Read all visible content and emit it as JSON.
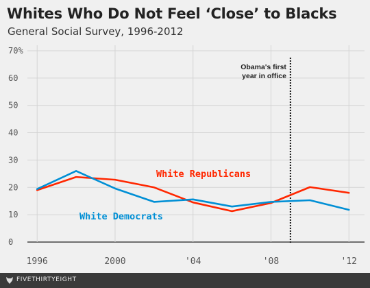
{
  "header": {
    "title": "Whites Who Do Not Feel ‘Close’ to Blacks",
    "subtitle": "General Social Survey, 1996-2012"
  },
  "footer": {
    "brand": "FIVETHIRTYEIGHT"
  },
  "chart_data": {
    "type": "line",
    "title": "Whites Who Do Not Feel ‘Close’ to Blacks",
    "subtitle": "General Social Survey, 1996-2012",
    "xlabel": "",
    "ylabel": "",
    "xlim": [
      1995.5,
      2012.8
    ],
    "ylim": [
      0,
      72
    ],
    "x_ticks": [
      1996,
      2000,
      2004,
      2008,
      2012
    ],
    "x_tick_labels": [
      "1996",
      "2000",
      "'04",
      "'08",
      "'12"
    ],
    "y_ticks": [
      0,
      10,
      20,
      30,
      40,
      50,
      60,
      70
    ],
    "y_tick_labels": [
      "0",
      "10",
      "20",
      "30",
      "40",
      "50",
      "60",
      "70%"
    ],
    "grid": true,
    "series": [
      {
        "name": "White Republicans",
        "color": "#ff2700",
        "x": [
          1996,
          1998,
          2000,
          2002,
          2004,
          2006,
          2008,
          2010,
          2012
        ],
        "values": [
          19,
          23.8,
          22.8,
          20,
          14.5,
          11.3,
          14.3,
          20.1,
          18
        ]
      },
      {
        "name": "White Democrats",
        "color": "#008fd5",
        "x": [
          1996,
          1998,
          2000,
          2002,
          2004,
          2006,
          2008,
          2010,
          2012
        ],
        "values": [
          19.4,
          26,
          19.6,
          14.7,
          15.6,
          13,
          14.7,
          15.3,
          11.8
        ]
      }
    ],
    "annotations": [
      {
        "text_lines": [
          "Obama's first",
          "year in office"
        ],
        "x": 2009,
        "style": "dotted-vertical-line"
      }
    ]
  }
}
